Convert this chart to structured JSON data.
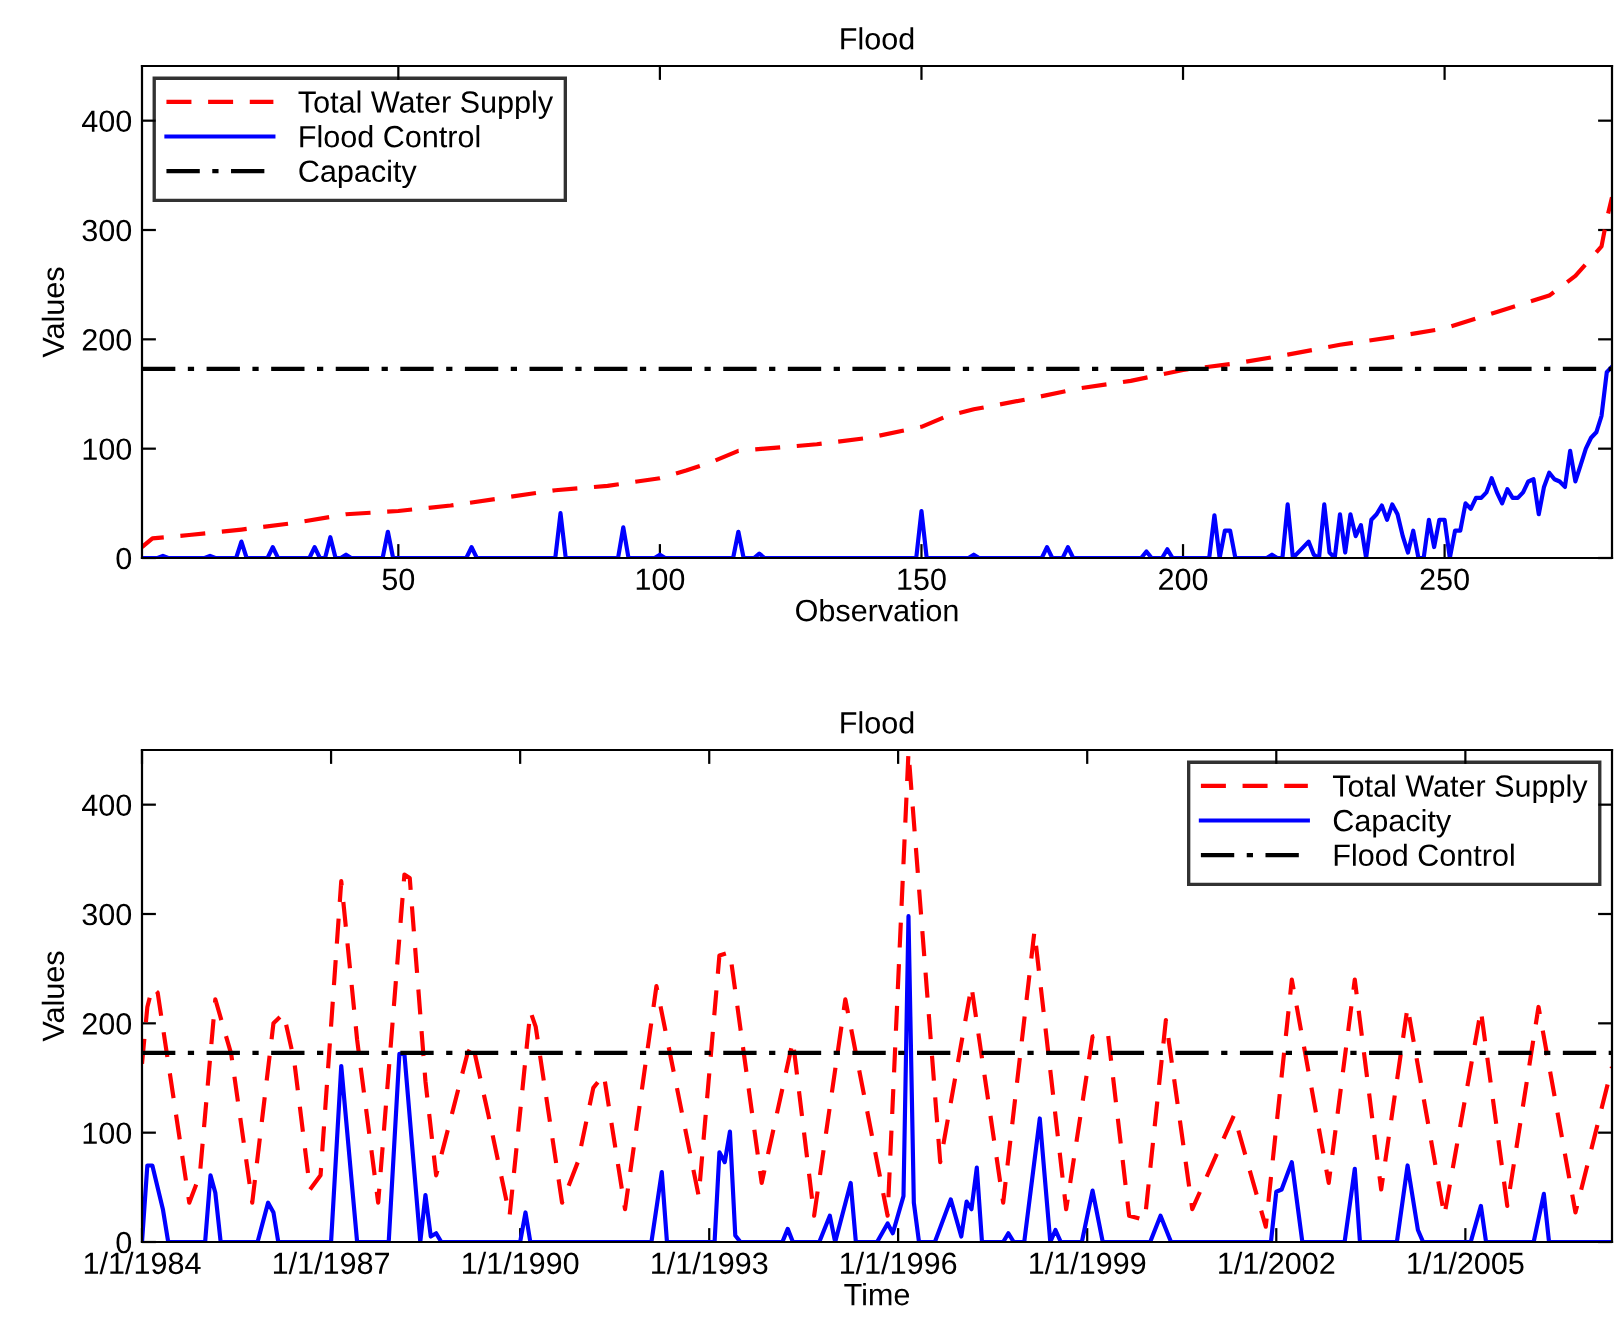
{
  "chart_data": [
    {
      "type": "line",
      "title": "Flood",
      "xlabel": "Observation",
      "ylabel": "Values",
      "xlim": [
        1,
        282
      ],
      "ylim": [
        0,
        450
      ],
      "xticks": [
        50,
        100,
        150,
        200,
        250
      ],
      "yticks": [
        0,
        100,
        200,
        300,
        400
      ],
      "legend": "top left",
      "grid": false,
      "series": [
        {
          "name": "Total Water Supply",
          "color": "#ff0000",
          "line_style": "dashed",
          "x": [
            1,
            3,
            10,
            20,
            30,
            40,
            50,
            60,
            70,
            80,
            90,
            100,
            105,
            110,
            115,
            120,
            130,
            140,
            150,
            155,
            160,
            170,
            180,
            190,
            200,
            210,
            220,
            230,
            240,
            250,
            260,
            270,
            275,
            280,
            281,
            282
          ],
          "values": [
            10,
            18,
            21,
            26,
            32,
            40,
            43,
            48,
            55,
            62,
            66,
            73,
            80,
            88,
            98,
            100,
            104,
            110,
            120,
            130,
            136,
            145,
            155,
            162,
            172,
            178,
            186,
            195,
            202,
            210,
            225,
            240,
            258,
            285,
            310,
            330
          ]
        },
        {
          "name": "Flood Control",
          "color": "#0000ff",
          "line_style": "solid",
          "x": [
            1,
            4,
            5,
            6,
            13,
            14,
            15,
            19,
            20,
            21,
            25,
            26,
            27,
            33,
            34,
            35,
            36,
            37,
            38,
            39,
            40,
            41,
            47,
            48,
            49,
            63,
            64,
            65,
            80,
            81,
            82,
            92,
            93,
            94,
            99,
            100,
            101,
            114,
            115,
            116,
            118,
            119,
            120,
            149,
            150,
            151,
            159,
            160,
            161,
            173,
            174,
            175,
            177,
            178,
            179,
            192,
            193,
            194,
            196,
            197,
            198,
            205,
            206,
            207,
            208,
            209,
            210,
            216,
            217,
            218,
            219,
            220,
            221,
            223,
            224,
            225,
            226,
            227,
            228,
            229,
            230,
            231,
            232,
            233,
            234,
            235,
            236,
            237,
            238,
            239,
            240,
            241,
            242,
            243,
            244,
            245,
            246,
            247,
            248,
            249,
            250,
            251,
            252,
            253,
            254,
            255,
            256,
            257,
            258,
            259,
            260,
            261,
            262,
            263,
            264,
            265,
            266,
            267,
            268,
            269,
            270,
            271,
            272,
            273,
            274,
            275,
            276,
            277,
            278,
            279,
            280,
            281,
            282
          ],
          "values": [
            0,
            0,
            2,
            0,
            0,
            2,
            0,
            0,
            15,
            0,
            0,
            10,
            0,
            0,
            10,
            0,
            0,
            19,
            0,
            0,
            3,
            0,
            0,
            24,
            0,
            0,
            10,
            0,
            0,
            41,
            0,
            0,
            28,
            0,
            0,
            3,
            0,
            0,
            24,
            0,
            0,
            4,
            0,
            0,
            43,
            0,
            0,
            3,
            0,
            0,
            10,
            0,
            0,
            10,
            0,
            0,
            6,
            0,
            0,
            8,
            0,
            0,
            39,
            0,
            25,
            25,
            0,
            0,
            3,
            0,
            0,
            49,
            0,
            10,
            15,
            3,
            0,
            49,
            5,
            0,
            40,
            5,
            40,
            20,
            30,
            0,
            35,
            40,
            48,
            35,
            49,
            40,
            20,
            5,
            25,
            0,
            0,
            35,
            10,
            35,
            35,
            0,
            25,
            25,
            50,
            45,
            55,
            55,
            60,
            73,
            60,
            50,
            63,
            55,
            55,
            60,
            70,
            72,
            40,
            65,
            78,
            72,
            70,
            65,
            98,
            70,
            85,
            100,
            110,
            115,
            130,
            170,
            175
          ]
        },
        {
          "name": "Capacity",
          "color": "#000000",
          "line_style": "dashdot",
          "x": [
            1,
            282
          ],
          "values": [
            173,
            173
          ]
        }
      ]
    },
    {
      "type": "line",
      "title": "Flood",
      "xlabel": "Time",
      "ylabel": "Values",
      "xlim": [
        "1984-01-01",
        "2007-05-01"
      ],
      "ylim": [
        0,
        450
      ],
      "xticks": [
        {
          "value": "1984-01-01",
          "label": "1/1/1984"
        },
        {
          "value": "1987-01-01",
          "label": "1/1/1987"
        },
        {
          "value": "1990-01-01",
          "label": "1/1/1990"
        },
        {
          "value": "1993-01-01",
          "label": "1/1/1993"
        },
        {
          "value": "1996-01-01",
          "label": "1/1/1996"
        },
        {
          "value": "1999-01-01",
          "label": "1/1/1999"
        },
        {
          "value": "2002-01-01",
          "label": "1/1/2002"
        },
        {
          "value": "2005-01-01",
          "label": "1/1/2005"
        }
      ],
      "yticks": [
        0,
        100,
        200,
        300,
        400
      ],
      "legend": "top right",
      "grid": false,
      "series": [
        {
          "name": "Total Water Supply",
          "color": "#ff0000",
          "line_style": "dashed",
          "x": [
            "1984-01",
            "1984-02",
            "1984-03",
            "1984-04",
            "1984-10",
            "1984-12",
            "1985-03",
            "1985-06",
            "1985-10",
            "1986-02",
            "1986-04",
            "1986-06",
            "1986-09",
            "1986-11",
            "1987-03",
            "1987-06",
            "1987-10",
            "1988-03",
            "1988-04",
            "1988-07",
            "1988-09",
            "1989-03",
            "1989-04",
            "1989-07",
            "1989-11",
            "1990-03",
            "1990-04",
            "1990-09",
            "1990-12",
            "1991-03",
            "1991-05",
            "1991-09",
            "1992-03",
            "1992-11",
            "1993-03",
            "1993-05",
            "1993-11",
            "1994-05",
            "1994-09",
            "1995-03",
            "1995-11",
            "1996-03",
            "1996-09",
            "1997-03",
            "1997-09",
            "1998-03",
            "1998-09",
            "1999-02",
            "1999-05",
            "1999-09",
            "1999-12",
            "2000-04",
            "2000-09",
            "2001-05",
            "2001-11",
            "2002-04",
            "2002-11",
            "2003-04",
            "2003-09",
            "2004-02",
            "2004-09",
            "2005-04",
            "2005-09",
            "2006-03",
            "2006-10",
            "2007-05"
          ],
          "values": [
            163,
            215,
            233,
            228,
            36,
            61,
            222,
            172,
            36,
            200,
            209,
            166,
            48,
            61,
            330,
            185,
            36,
            336,
            333,
            147,
            61,
            172,
            181,
            116,
            24,
            211,
            197,
            36,
            73,
            141,
            153,
            30,
            234,
            42,
            262,
            265,
            54,
            184,
            24,
            222,
            24,
            448,
            73,
            234,
            36,
            284,
            30,
            188,
            191,
            24,
            20,
            203,
            30,
            116,
            14,
            240,
            54,
            240,
            48,
            215,
            24,
            212,
            33,
            215,
            27,
            160
          ]
        },
        {
          "name": "Capacity",
          "color": "#0000ff",
          "line_style": "solid",
          "x": [
            "1984-01",
            "1984-02",
            "1984-03",
            "1984-05",
            "1984-06",
            "1985-01",
            "1985-02",
            "1985-03",
            "1985-04",
            "1985-11",
            "1986-01",
            "1986-02",
            "1986-03",
            "1987-01",
            "1987-03",
            "1987-06",
            "1987-12",
            "1988-02",
            "1988-03",
            "1988-06",
            "1988-07",
            "1988-08",
            "1988-09",
            "1988-10",
            "1990-01",
            "1990-02",
            "1990-03",
            "1992-02",
            "1992-04",
            "1992-05",
            "1993-02",
            "1993-03",
            "1993-04",
            "1993-05",
            "1993-06",
            "1993-07",
            "1994-03",
            "1994-04",
            "1994-05",
            "1994-10",
            "1994-12",
            "1995-01",
            "1995-04",
            "1995-05",
            "1995-09",
            "1995-11",
            "1995-12",
            "1996-02",
            "1996-03",
            "1996-04",
            "1996-05",
            "1996-08",
            "1996-11",
            "1997-01",
            "1997-02",
            "1997-03",
            "1997-04",
            "1997-05",
            "1997-09",
            "1997-10",
            "1997-11",
            "1998-01",
            "1998-04",
            "1998-06",
            "1998-07",
            "1998-08",
            "1998-12",
            "1999-02",
            "1999-04",
            "2000-01",
            "2000-03",
            "2000-05",
            "2001-12",
            "2002-01",
            "2002-02",
            "2002-04",
            "2002-06",
            "2003-02",
            "2003-04",
            "2003-05",
            "2003-12",
            "2004-02",
            "2004-04",
            "2004-05",
            "2005-02",
            "2005-04",
            "2005-05",
            "2006-02",
            "2006-04",
            "2006-05",
            "2007-05"
          ],
          "values": [
            0,
            70,
            70,
            30,
            0,
            0,
            61,
            45,
            0,
            0,
            36,
            27,
            0,
            0,
            161,
            0,
            0,
            172,
            172,
            0,
            43,
            5,
            8,
            0,
            0,
            27,
            0,
            0,
            64,
            0,
            0,
            82,
            73,
            101,
            6,
            0,
            0,
            12,
            0,
            0,
            24,
            0,
            54,
            0,
            0,
            17,
            8,
            42,
            298,
            36,
            0,
            0,
            39,
            5,
            37,
            30,
            68,
            0,
            0,
            8,
            0,
            0,
            113,
            0,
            11,
            0,
            0,
            47,
            0,
            0,
            24,
            0,
            0,
            46,
            48,
            73,
            0,
            0,
            67,
            0,
            0,
            70,
            11,
            0,
            0,
            33,
            0,
            0,
            44,
            0,
            0
          ]
        },
        {
          "name": "Flood Control",
          "color": "#000000",
          "line_style": "dashdot",
          "x": [
            "1984-01-01",
            "2007-05-01"
          ],
          "values": [
            173,
            173
          ]
        }
      ]
    }
  ]
}
